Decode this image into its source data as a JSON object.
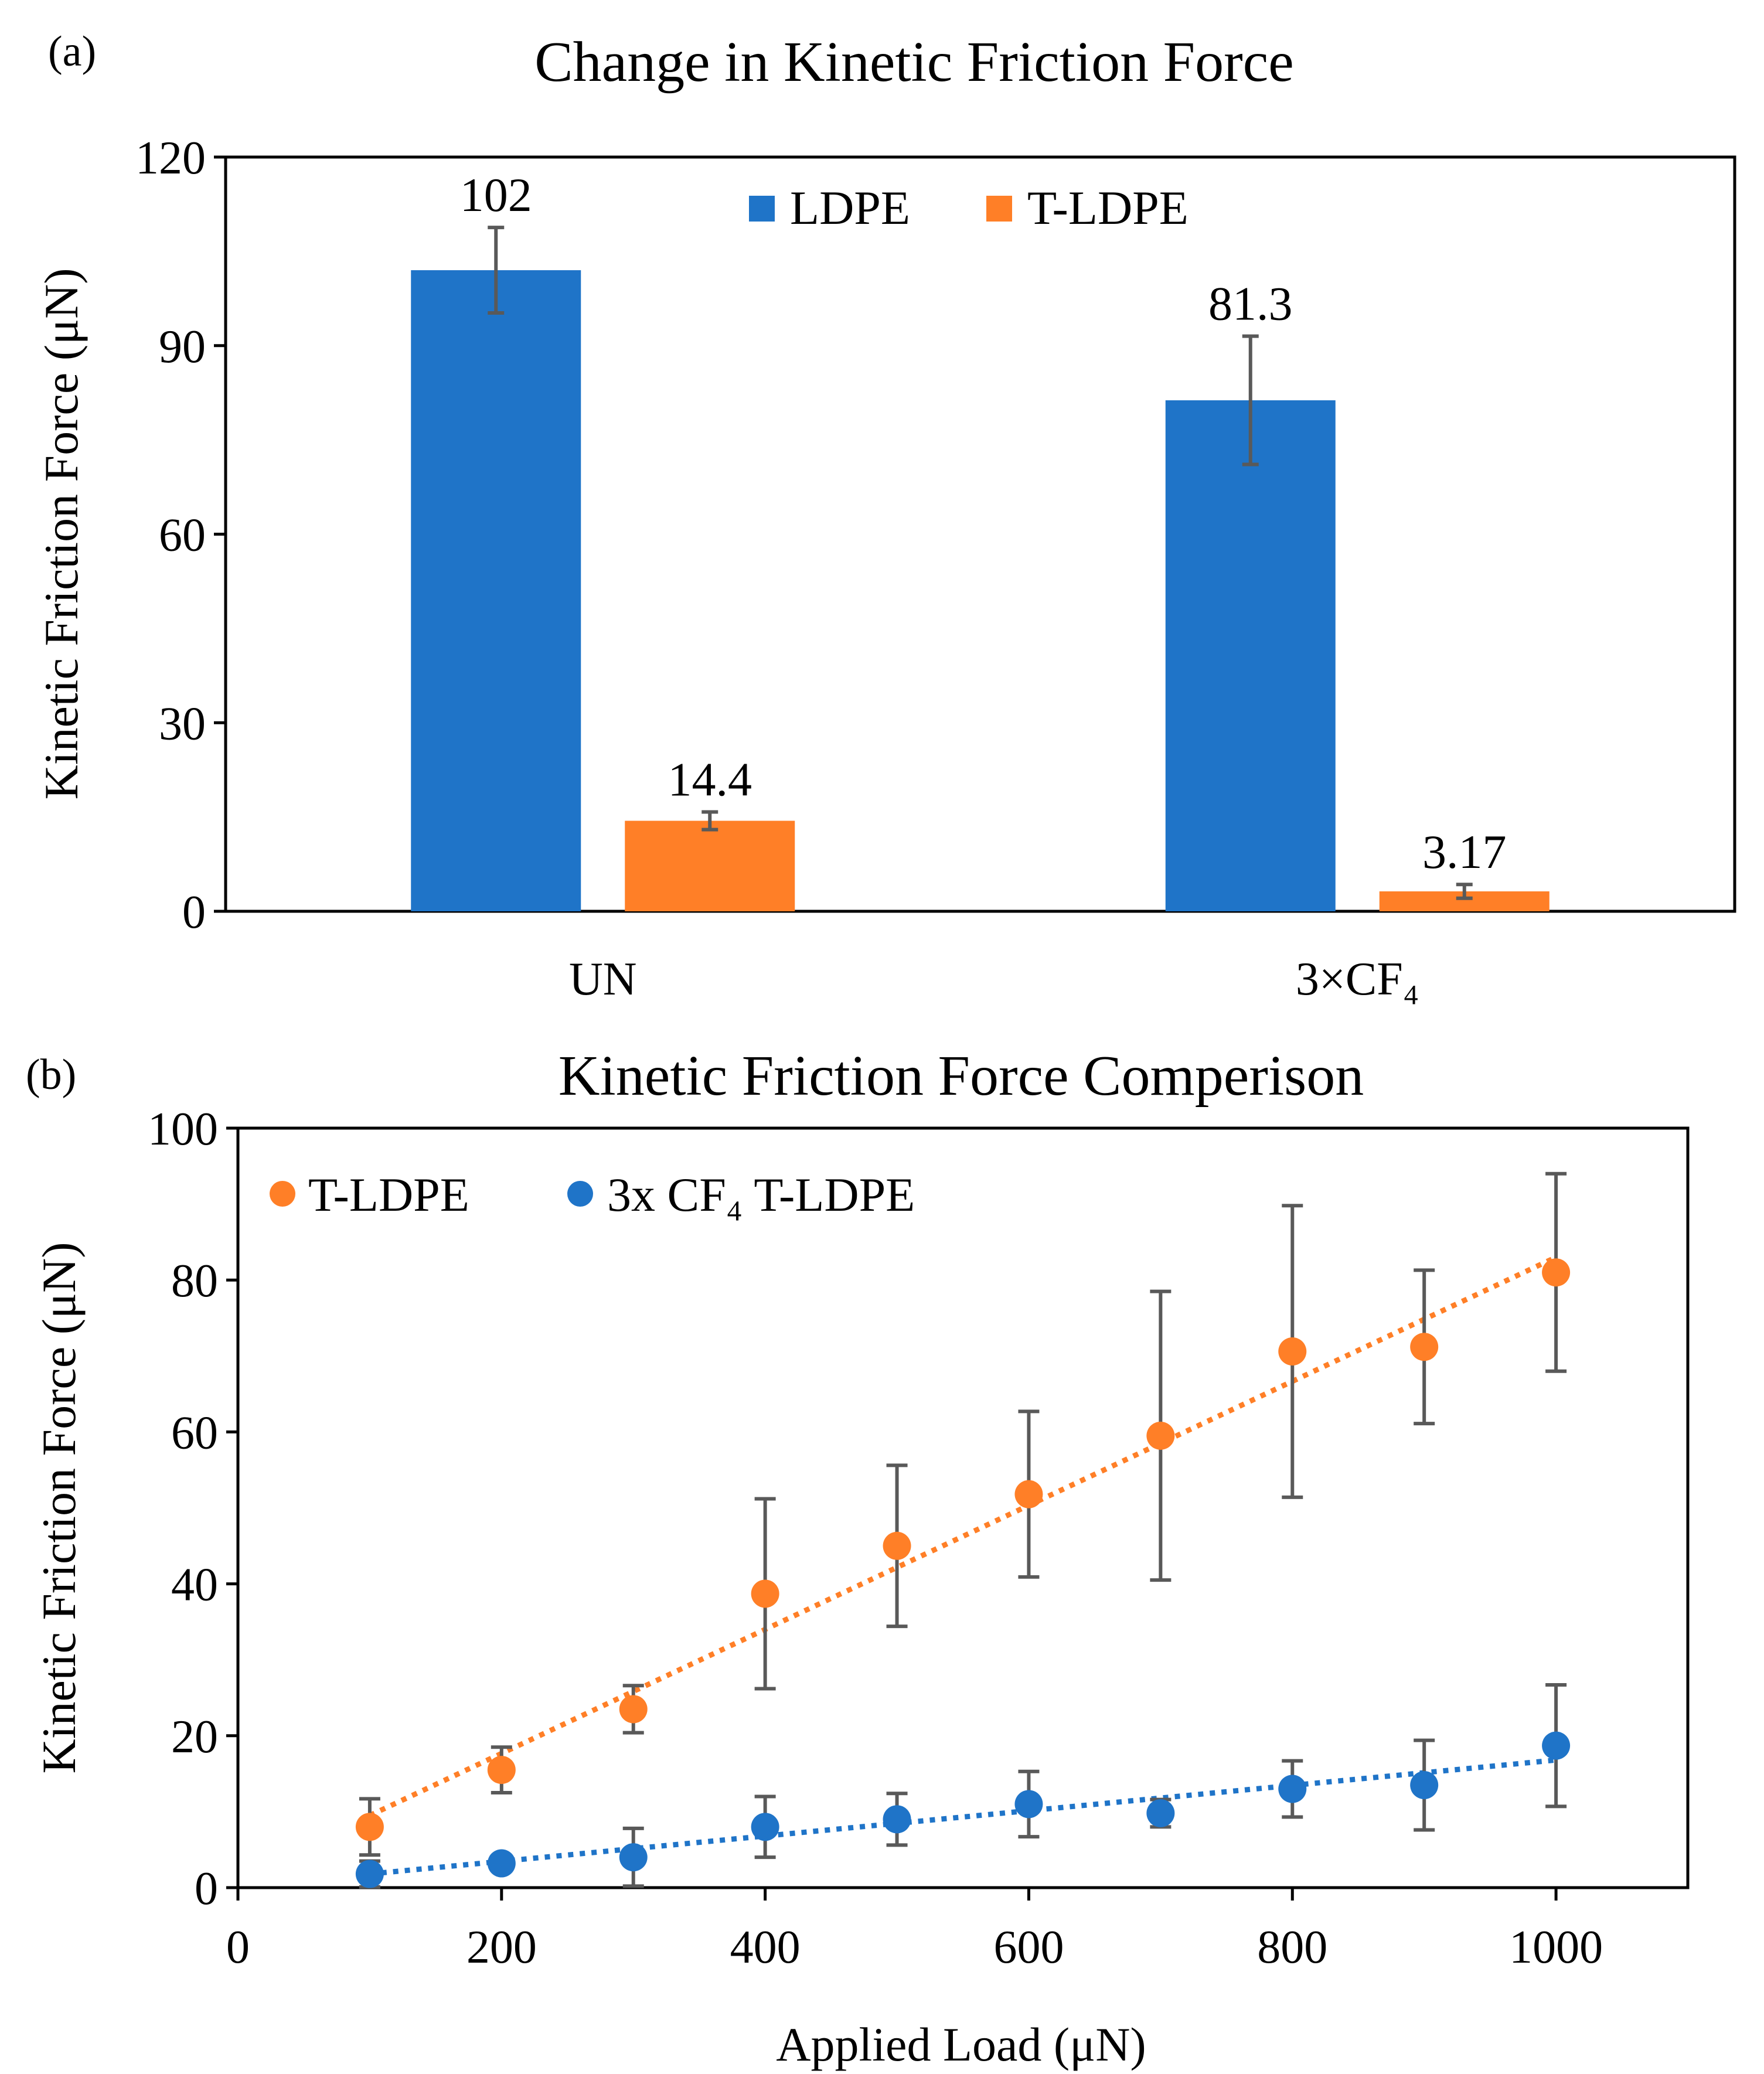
{
  "chart_data": [
    {
      "panel_label": "(a)",
      "type": "bar",
      "title": "Change in Kinetic Friction Force",
      "xlabel": "",
      "ylabel": "Kinetic Friction Force (μN)",
      "ylim": [
        0,
        120
      ],
      "yticks": [
        "0",
        "30",
        "60",
        "90",
        "120"
      ],
      "categories": [
        "UN",
        "3×CF₄"
      ],
      "series": [
        {
          "name": "LDPE",
          "color": "#1f74c8",
          "values": [
            102,
            81.3
          ],
          "errors": [
            6.8,
            10.2
          ],
          "labels": [
            "102",
            "81.3"
          ]
        },
        {
          "name": "T-LDPE",
          "color": "#ff7f27",
          "values": [
            14.4,
            3.17
          ],
          "errors": [
            1.4,
            1.1
          ],
          "labels": [
            "14.4",
            "3.17"
          ]
        }
      ],
      "legend": "top-center",
      "grid": false
    },
    {
      "panel_label": "(b)",
      "type": "scatter",
      "title": "Kinetic Friction Force Comperison",
      "xlabel": "Applied Load  (μN)",
      "ylabel": "Kinetic Friction Force (μN)",
      "xlim": [
        0,
        1100
      ],
      "ylim": [
        0,
        100
      ],
      "xticks": [
        "0",
        "200",
        "400",
        "600",
        "800",
        "1000"
      ],
      "yticks": [
        "0",
        "20",
        "40",
        "60",
        "80",
        "100"
      ],
      "series": [
        {
          "name": "T-LDPE",
          "color": "#ff7f27",
          "x": [
            100,
            200,
            300,
            400,
            500,
            600,
            700,
            800,
            900,
            1000
          ],
          "y": [
            8,
            15.5,
            23.5,
            38.7,
            45,
            51.8,
            59.5,
            70.6,
            71.2,
            81
          ],
          "errors": [
            3.7,
            3,
            3.1,
            12.5,
            10.6,
            10.9,
            19,
            19.2,
            10.1,
            13
          ],
          "trendline": {
            "x": [
              100,
              1000
            ],
            "y": [
              9.5,
              83
            ]
          }
        },
        {
          "name": "3x CF₄ T-LDPE",
          "color": "#1f74c8",
          "x": [
            100,
            200,
            300,
            400,
            500,
            600,
            700,
            800,
            900,
            1000
          ],
          "y": [
            1.8,
            3.2,
            4,
            8,
            9,
            11,
            9.8,
            13,
            13.5,
            18.7
          ],
          "errors": [
            1.7,
            0.8,
            3.8,
            4,
            3.4,
            4.3,
            1.8,
            3.7,
            5.9,
            8
          ],
          "trendline": {
            "x": [
              100,
              1000
            ],
            "y": [
              1.8,
              16.8
            ]
          }
        }
      ],
      "legend": "top-left",
      "grid": false
    }
  ]
}
